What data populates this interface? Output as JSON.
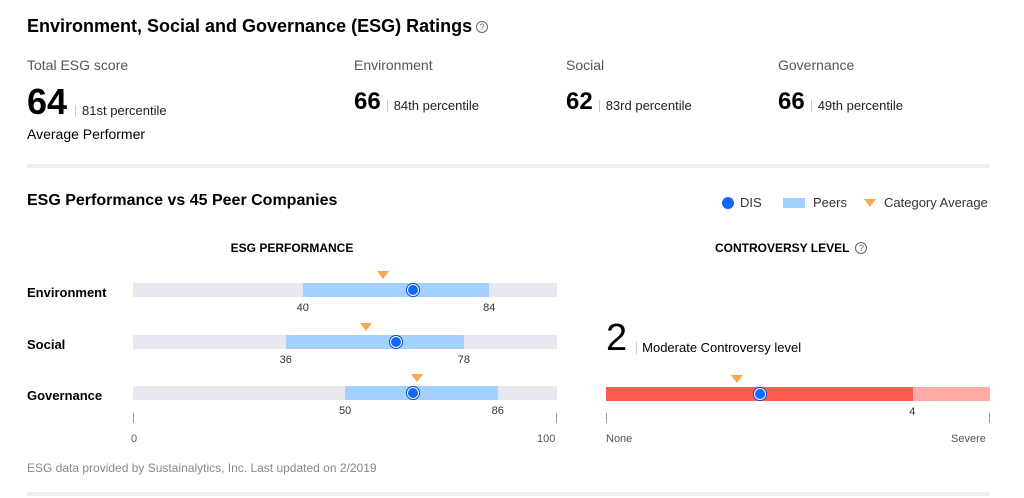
{
  "header": {
    "title": "Environment, Social and Governance (ESG) Ratings",
    "help": "?"
  },
  "scores": {
    "total": {
      "label": "Total ESG score",
      "value": "64",
      "percentile": "81st percentile",
      "performer": "Average Performer"
    },
    "environment": {
      "label": "Environment",
      "value": "66",
      "percentile": "84th percentile"
    },
    "social": {
      "label": "Social",
      "value": "62",
      "percentile": "83rd percentile"
    },
    "governance": {
      "label": "Governance",
      "value": "66",
      "percentile": "49th percentile"
    }
  },
  "performance": {
    "title": "ESG Performance vs 45 Peer Companies",
    "legend": {
      "company": "DIS",
      "peers": "Peers",
      "category_average": "Category Average"
    },
    "section_title": "ESG PERFORMANCE",
    "axis": {
      "min": "0",
      "max": "100"
    },
    "rows": [
      {
        "label": "Environment",
        "peer_low": 40,
        "peer_high": 84,
        "peer_low_label": "40",
        "peer_high_label": "84",
        "company_score": 66,
        "category_average": 59
      },
      {
        "label": "Social",
        "peer_low": 36,
        "peer_high": 78,
        "peer_low_label": "36",
        "peer_high_label": "78",
        "company_score": 62,
        "category_average": 55
      },
      {
        "label": "Governance",
        "peer_low": 50,
        "peer_high": 86,
        "peer_low_label": "50",
        "peer_high_label": "86",
        "company_score": 66,
        "category_average": 67
      }
    ]
  },
  "controversy": {
    "section_title": "CONTROVERSY LEVEL",
    "help": "?",
    "value": "2",
    "description": "Moderate Controversy level",
    "scale_max": 5,
    "peer_max": 4,
    "peer_max_label": "4",
    "company_level": 2,
    "category_average": 1.7,
    "min_label": "None",
    "max_label": "Severe",
    "colors": {
      "filled": "#ff5a4f",
      "rest": "#ffaaa4"
    }
  },
  "footer": {
    "text": "ESG data provided by Sustainalytics, Inc.  Last updated on 2/2019"
  }
}
